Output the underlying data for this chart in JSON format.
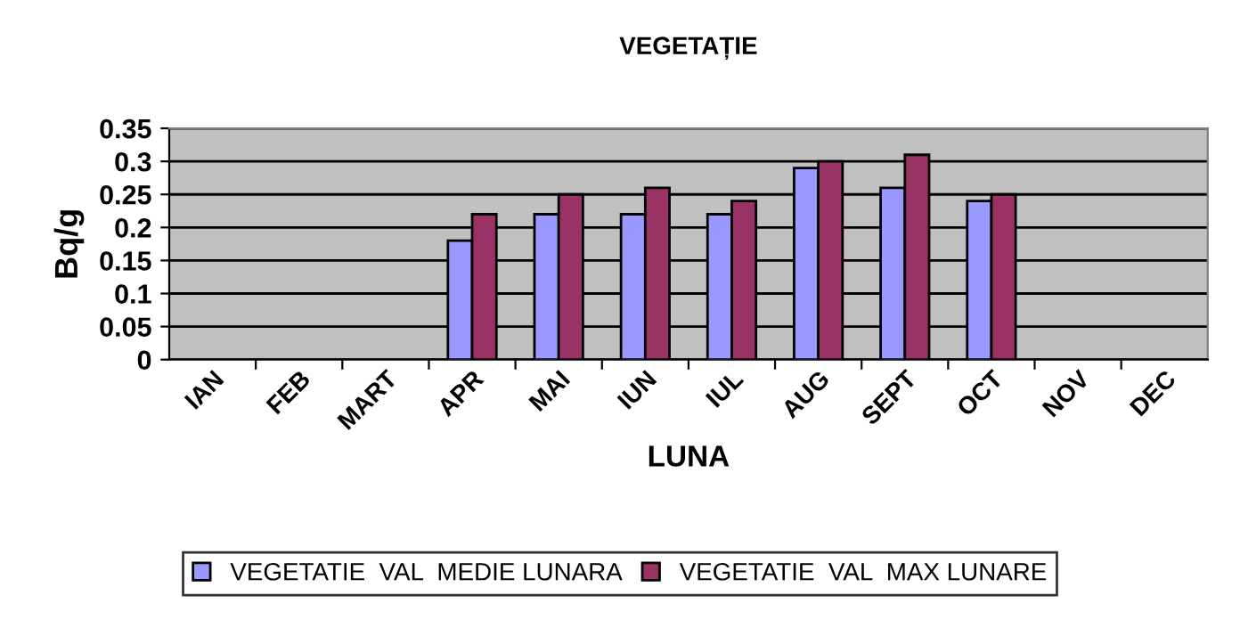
{
  "chart_data": {
    "type": "bar",
    "title": "VEGETAȚIE",
    "xlabel": "LUNA",
    "ylabel": "Bq/g",
    "categories": [
      "IAN",
      "FEB",
      "MART",
      "APR",
      "MAI",
      "IUN",
      "IUL",
      "AUG",
      "SEPT",
      "OCT",
      "NOV",
      "DEC"
    ],
    "series": [
      {
        "name": "VEGETATIE  VAL  MEDIE LUNARA",
        "color": "#9999ff",
        "values": [
          null,
          null,
          null,
          0.18,
          0.22,
          0.22,
          0.22,
          0.29,
          0.26,
          0.24,
          null,
          null
        ]
      },
      {
        "name": "VEGETATIE  VAL  MAX LUNARE",
        "color": "#993366",
        "values": [
          null,
          null,
          null,
          0.22,
          0.25,
          0.26,
          0.24,
          0.3,
          0.31,
          0.25,
          null,
          null
        ]
      }
    ],
    "ylim": [
      0,
      0.35
    ],
    "yticks": [
      0,
      0.05,
      0.1,
      0.15,
      0.2,
      0.25,
      0.3,
      0.35
    ],
    "grid": "y",
    "legend": "bottom"
  }
}
